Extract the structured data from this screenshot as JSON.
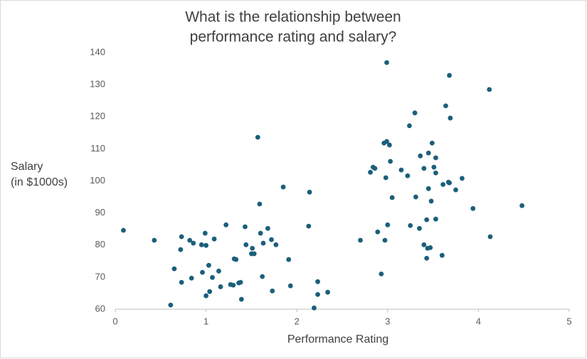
{
  "chart_data": {
    "type": "scatter",
    "title": [
      "What is the relationship between",
      "performance rating and salary?"
    ],
    "xlabel": "Performance Rating",
    "ylabel": [
      "Salary",
      "(in $1000s)"
    ],
    "color": "#1b5f7b",
    "xlim": [
      0,
      5
    ],
    "xticks": [
      0,
      1,
      2,
      3,
      4,
      5
    ],
    "ylim": [
      60,
      140
    ],
    "yticks": [
      60,
      70,
      80,
      90,
      100,
      110,
      120,
      130,
      140
    ],
    "grid": false,
    "x": [
      0.09,
      0.43,
      0.61,
      0.65,
      0.72,
      0.73,
      0.73,
      0.82,
      0.84,
      0.86,
      0.95,
      0.96,
      0.99,
      1.0,
      1.0,
      1.03,
      1.04,
      1.07,
      1.09,
      1.14,
      1.16,
      1.22,
      1.27,
      1.3,
      1.31,
      1.33,
      1.36,
      1.38,
      1.39,
      1.43,
      1.44,
      1.5,
      1.51,
      1.53,
      1.57,
      1.59,
      1.6,
      1.62,
      1.63,
      1.68,
      1.72,
      1.73,
      1.77,
      1.85,
      1.91,
      1.93,
      2.14,
      2.13,
      2.19,
      2.23,
      2.23,
      2.34,
      2.7,
      2.81,
      2.84,
      2.86,
      2.89,
      2.93,
      2.96,
      2.99,
      2.97,
      2.98,
      2.99,
      3.0,
      3.02,
      3.03,
      3.05,
      3.15,
      3.22,
      3.24,
      3.25,
      3.3,
      3.31,
      3.35,
      3.36,
      3.4,
      3.4,
      3.43,
      3.43,
      3.44,
      3.45,
      3.45,
      3.48,
      3.47,
      3.49,
      3.51,
      3.53,
      3.53,
      3.53,
      3.6,
      3.61,
      3.64,
      3.67,
      3.68,
      3.68,
      3.69,
      3.75,
      3.82,
      3.94,
      4.12,
      4.13,
      4.48
    ],
    "values": [
      84.6,
      81.5,
      61.3,
      72.6,
      78.6,
      82.6,
      68.4,
      81.5,
      69.7,
      80.6,
      80.1,
      71.5,
      83.7,
      79.9,
      64.2,
      73.7,
      65.5,
      69.9,
      81.9,
      71.9,
      67.0,
      86.3,
      67.7,
      67.5,
      75.7,
      75.5,
      68.2,
      68.4,
      63.1,
      85.7,
      80.1,
      77.3,
      79.0,
      77.3,
      113.6,
      92.8,
      83.7,
      70.2,
      80.6,
      85.2,
      81.7,
      65.7,
      80.1,
      98.1,
      75.5,
      67.3,
      96.5,
      85.9,
      60.4,
      68.6,
      64.6,
      65.3,
      81.5,
      102.7,
      104.3,
      103.9,
      84.1,
      71.0,
      111.8,
      112.3,
      81.5,
      101.0,
      136.9,
      86.3,
      111.2,
      106.1,
      94.8,
      103.4,
      101.6,
      117.2,
      86.1,
      121.2,
      95.0,
      85.2,
      107.8,
      103.9,
      80.1,
      75.9,
      87.9,
      79.0,
      108.7,
      97.6,
      93.7,
      79.2,
      111.8,
      104.3,
      107.2,
      102.5,
      88.1,
      76.8,
      98.9,
      123.4,
      99.6,
      99.4,
      132.9,
      119.6,
      97.2,
      100.8,
      91.4,
      128.5,
      82.6,
      92.3
    ]
  }
}
